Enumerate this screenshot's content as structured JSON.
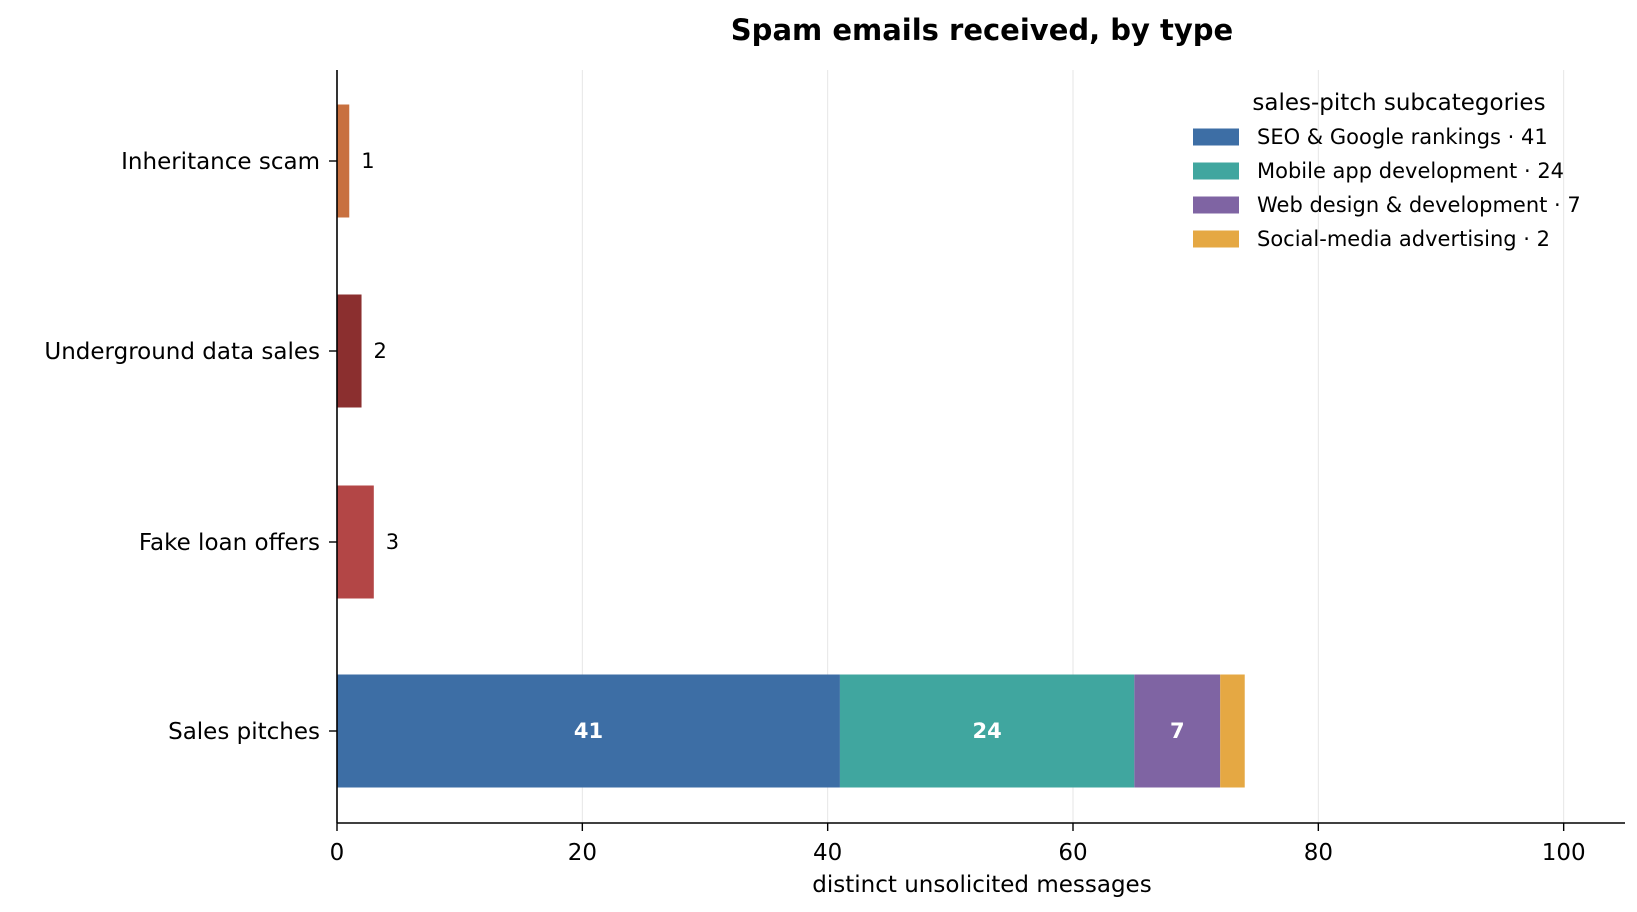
{
  "chart_data": {
    "type": "bar",
    "orientation": "horizontal",
    "stacked": true,
    "title": "Spam emails received, by type",
    "xlabel": "distinct unsolicited messages",
    "ylabel": "",
    "xlim": [
      0,
      105
    ],
    "xticks": [
      0,
      20,
      40,
      60,
      80,
      100
    ],
    "grid": "vertical",
    "categories": [
      "Sales pitches",
      "Fake loan offers",
      "Underground data sales",
      "Inheritance scam"
    ],
    "simple_bars": [
      {
        "category": "Inheritance scam",
        "value": 1,
        "color": "#c8703f"
      },
      {
        "category": "Underground data sales",
        "value": 2,
        "color": "#8b2f2f"
      },
      {
        "category": "Fake loan offers",
        "value": 3,
        "color": "#b34646"
      }
    ],
    "stacked_bar": {
      "category": "Sales pitches",
      "segments": [
        {
          "name": "SEO & Google rankings",
          "value": 41,
          "label": "41",
          "color": "#3d6ea5"
        },
        {
          "name": "Mobile app development",
          "value": 24,
          "label": "24",
          "color": "#40a69f"
        },
        {
          "name": "Web design & development",
          "value": 7,
          "label": "7",
          "color": "#7f64a3"
        },
        {
          "name": "Social-media advertising",
          "value": 2,
          "label": "",
          "color": "#e5a843"
        }
      ]
    },
    "legend": {
      "title": "sales-pitch subcategories",
      "placement": "top-right",
      "entries": [
        "SEO & Google rankings · 41",
        "Mobile app development · 24",
        "Web design & development · 7",
        "Social-media advertising · 2"
      ]
    }
  }
}
